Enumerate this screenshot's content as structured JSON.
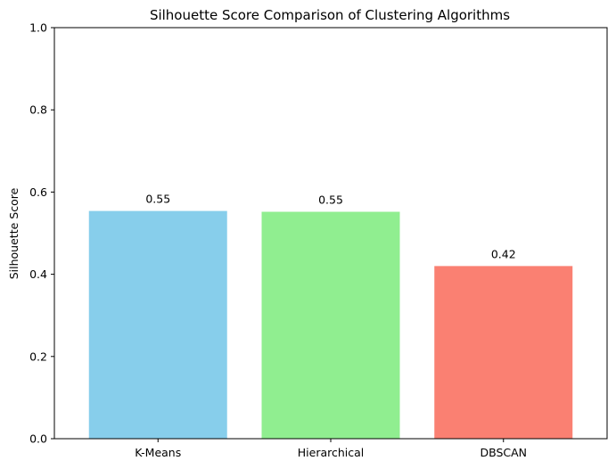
{
  "chart_data": {
    "type": "bar",
    "title": "Silhouette Score Comparison of Clustering Algorithms",
    "xlabel": "",
    "ylabel": "Silhouette Score",
    "categories": [
      "K-Means",
      "Hierarchical",
      "DBSCAN"
    ],
    "values": [
      0.554,
      0.552,
      0.42
    ],
    "data_labels": [
      "0.55",
      "0.55",
      "0.42"
    ],
    "colors": [
      "#87CEEB",
      "#90EE90",
      "#FA8072"
    ],
    "ylim": [
      0,
      1
    ],
    "yticks": [
      0.0,
      0.2,
      0.4,
      0.6,
      0.8,
      1.0
    ],
    "ytick_labels": [
      "0.0",
      "0.2",
      "0.4",
      "0.6",
      "0.8",
      "1.0"
    ],
    "grid": false,
    "legend": "none"
  }
}
